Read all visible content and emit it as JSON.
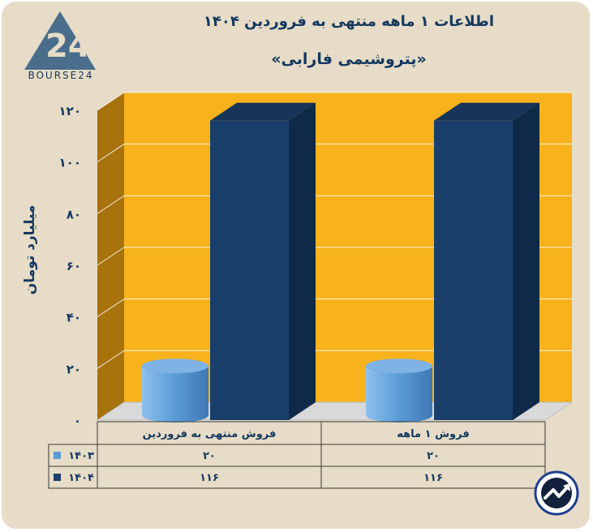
{
  "header": {
    "title": "اطلاعات ۱ ماهه منتهی به فروردین ۱۴۰۴",
    "subtitle": "«پتروشیمی فارابی»"
  },
  "logo": {
    "text": "BOURSE24",
    "mark": "24"
  },
  "chart_data": {
    "type": "bar",
    "title": "اطلاعات ۱ ماهه منتهی به فروردین ۱۴۰۴",
    "subtitle": "«پتروشیمی فارابی»",
    "ylabel": "میلیارد تومان",
    "xlabel": "",
    "ylim": [
      0,
      120
    ],
    "yticks": [
      0,
      20,
      40,
      60,
      80,
      100,
      120
    ],
    "ytick_labels": [
      "۰",
      "۲۰",
      "۴۰",
      "۶۰",
      "۸۰",
      "۱۰۰",
      "۱۲۰"
    ],
    "categories": [
      "فروش منتهی به  فروردین",
      "فروش ۱ ماهه"
    ],
    "series": [
      {
        "name": "۱۴۰۳",
        "values": [
          20,
          20
        ],
        "value_labels": [
          "۲۰",
          "۲۰"
        ],
        "color": "#5b9bd5",
        "shape": "cylinder"
      },
      {
        "name": "۱۴۰۴",
        "values": [
          116,
          116
        ],
        "value_labels": [
          "۱۱۶",
          "۱۱۶"
        ],
        "color": "#1b3f6b",
        "shape": "box"
      }
    ],
    "background_color": "#f8b21c",
    "side_wall_color": "#a8720c",
    "grid": true,
    "legend": "data-table-left"
  }
}
